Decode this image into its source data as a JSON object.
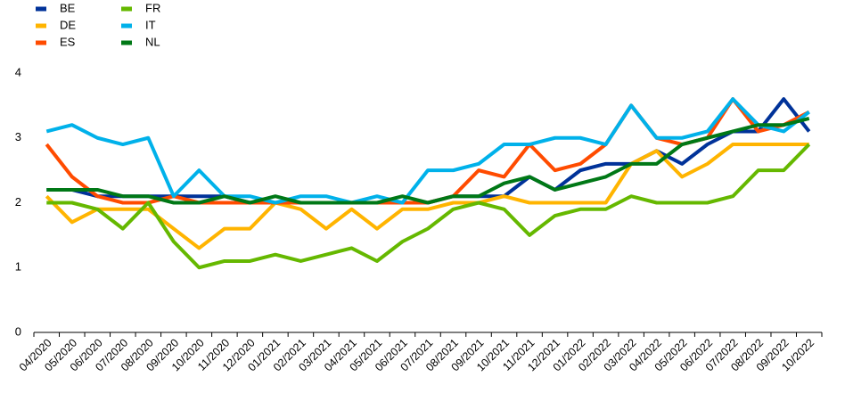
{
  "chart_data": {
    "type": "line",
    "categories": [
      "04/2020",
      "05/2020",
      "06/2020",
      "07/2020",
      "08/2020",
      "09/2020",
      "10/2020",
      "11/2020",
      "12/2020",
      "01/2021",
      "02/2021",
      "03/2021",
      "04/2021",
      "05/2021",
      "06/2021",
      "07/2021",
      "08/2021",
      "09/2021",
      "10/2021",
      "11/2021",
      "12/2021",
      "01/2022",
      "02/2022",
      "03/2022",
      "04/2022",
      "05/2022",
      "06/2022",
      "07/2022",
      "08/2022",
      "09/2022",
      "10/2022"
    ],
    "series": [
      {
        "name": "BE",
        "color": "#003299",
        "values": [
          2.2,
          2.2,
          2.1,
          2.1,
          2.1,
          2.1,
          2.1,
          2.1,
          2.0,
          2.0,
          2.0,
          2.0,
          2.0,
          2.0,
          2.0,
          2.0,
          2.1,
          2.1,
          2.1,
          2.4,
          2.2,
          2.5,
          2.6,
          2.6,
          2.8,
          2.6,
          2.9,
          3.1,
          3.1,
          3.6,
          3.1
        ]
      },
      {
        "name": "DE",
        "color": "#ffb400",
        "values": [
          2.1,
          1.7,
          1.9,
          1.9,
          1.9,
          1.6,
          1.3,
          1.6,
          1.6,
          2.0,
          1.9,
          1.6,
          1.9,
          1.6,
          1.9,
          1.9,
          2.0,
          2.0,
          2.1,
          2.0,
          2.0,
          2.0,
          2.0,
          2.6,
          2.8,
          2.4,
          2.6,
          2.9,
          2.9,
          2.9,
          2.9
        ]
      },
      {
        "name": "ES",
        "color": "#ff4b00",
        "values": [
          2.9,
          2.4,
          2.1,
          2.0,
          2.0,
          2.1,
          2.0,
          2.0,
          2.0,
          2.0,
          2.0,
          2.0,
          2.0,
          2.0,
          2.0,
          2.0,
          2.1,
          2.5,
          2.4,
          2.9,
          2.5,
          2.6,
          2.9,
          3.5,
          3.0,
          2.9,
          3.0,
          3.6,
          3.1,
          3.2,
          3.4
        ]
      },
      {
        "name": "FR",
        "color": "#65b800",
        "values": [
          2.0,
          2.0,
          1.9,
          1.6,
          2.0,
          1.4,
          1.0,
          1.1,
          1.1,
          1.2,
          1.1,
          1.2,
          1.3,
          1.1,
          1.4,
          1.6,
          1.9,
          2.0,
          1.9,
          1.5,
          1.8,
          1.9,
          1.9,
          2.1,
          2.0,
          2.0,
          2.0,
          2.1,
          2.5,
          2.5,
          2.9
        ]
      },
      {
        "name": "IT",
        "color": "#00b1ea",
        "values": [
          3.1,
          3.2,
          3.0,
          2.9,
          3.0,
          2.1,
          2.5,
          2.1,
          2.1,
          2.0,
          2.1,
          2.1,
          2.0,
          2.1,
          2.0,
          2.5,
          2.5,
          2.6,
          2.9,
          2.9,
          3.0,
          3.0,
          2.9,
          3.5,
          3.0,
          3.0,
          3.1,
          3.6,
          3.2,
          3.1,
          3.4
        ]
      },
      {
        "name": "NL",
        "color": "#007816",
        "values": [
          2.2,
          2.2,
          2.2,
          2.1,
          2.1,
          2.0,
          2.0,
          2.1,
          2.0,
          2.1,
          2.0,
          2.0,
          2.0,
          2.0,
          2.1,
          2.0,
          2.1,
          2.1,
          2.3,
          2.4,
          2.2,
          2.3,
          2.4,
          2.6,
          2.6,
          2.9,
          3.0,
          3.1,
          3.2,
          3.2,
          3.3
        ]
      }
    ],
    "ylim": [
      0,
      4
    ],
    "yticks": [
      0,
      1,
      2,
      3,
      4
    ],
    "grid": false
  }
}
